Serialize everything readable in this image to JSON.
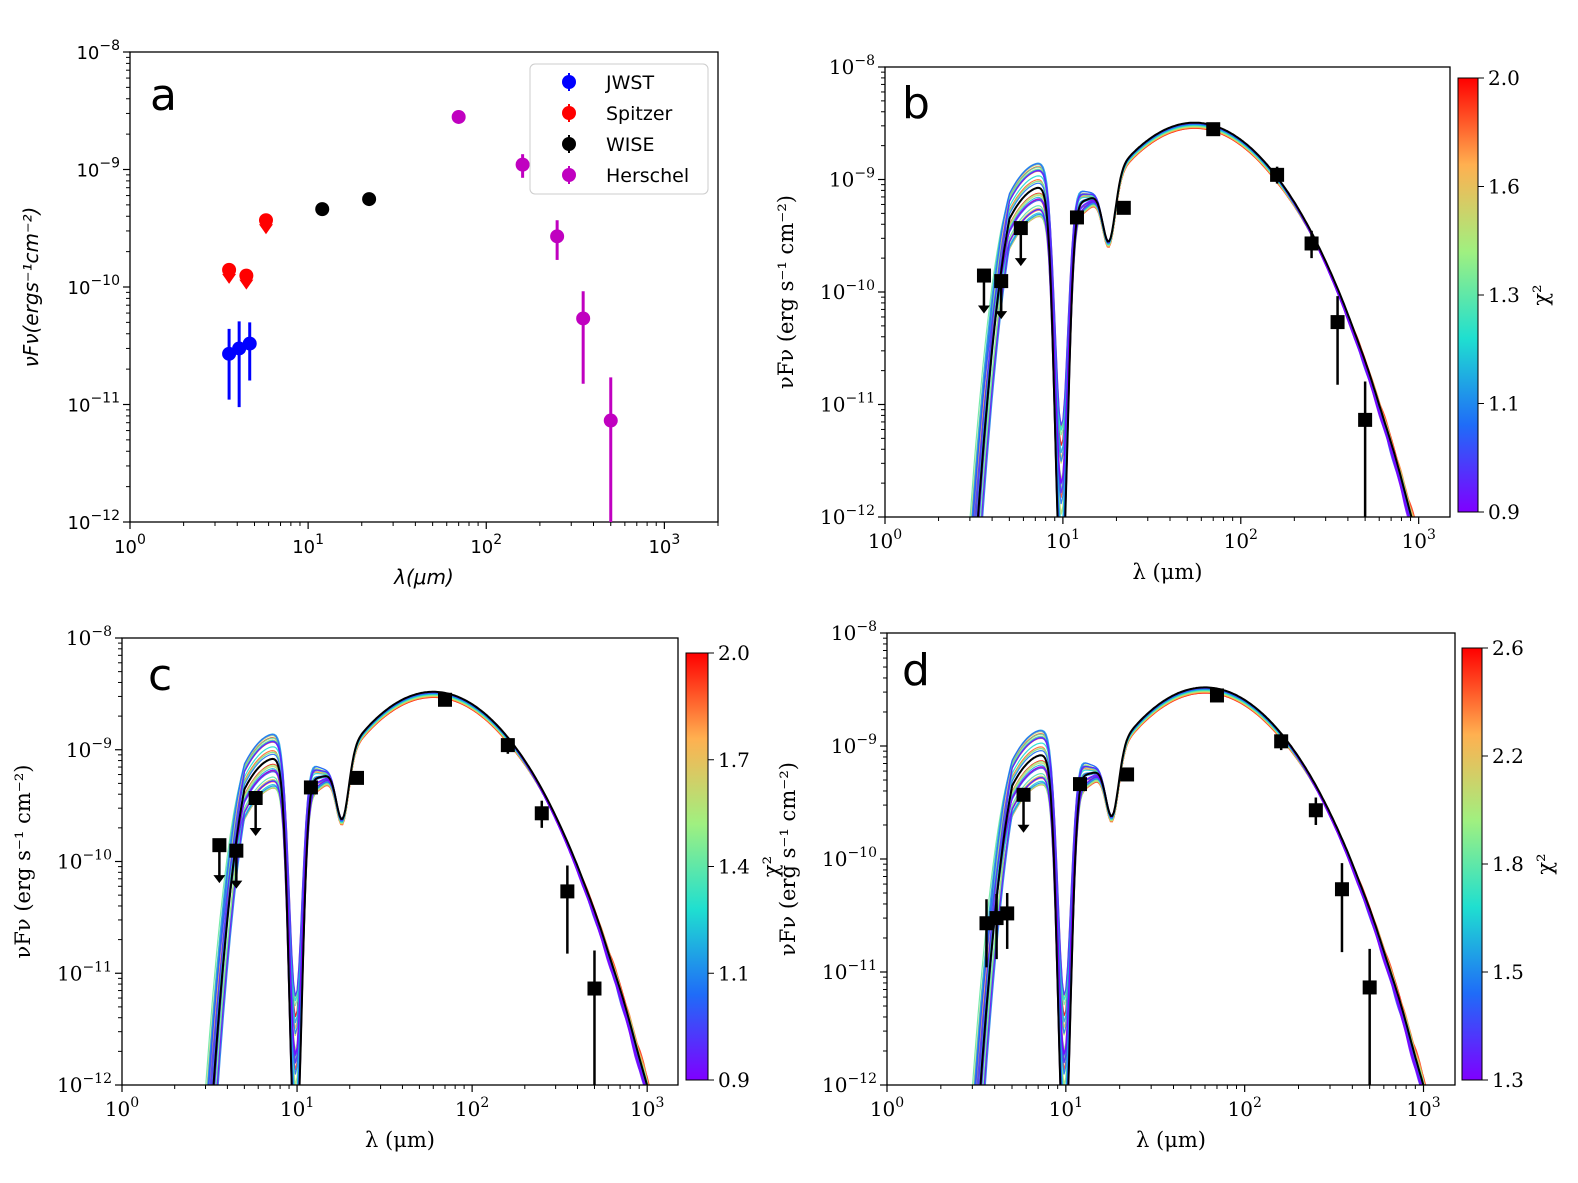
{
  "chart_data": [
    {
      "panel": "a",
      "type": "scatter",
      "scale": {
        "x": "log",
        "y": "log"
      },
      "xlim": [
        1,
        2000
      ],
      "ylim": [
        1e-12,
        1e-08
      ],
      "xticks": [
        "10^0",
        "10^1",
        "10^2",
        "10^3"
      ],
      "yticks": [
        "10^-12",
        "10^-11",
        "10^-10",
        "10^-9",
        "10^-8"
      ],
      "xlabel": "λ(μm)",
      "ylabel": "νFν(ergs⁻¹cm⁻²)",
      "legend": [
        "JWST",
        "Spitzer",
        "WISE",
        "Herschel"
      ],
      "legend_position": "top-right",
      "series": [
        {
          "name": "JWST",
          "color": "#0000ff",
          "points": [
            {
              "x": 3.6,
              "y": 2.7e-11,
              "ylo": 1.1e-11,
              "yhi": 4.4e-11
            },
            {
              "x": 4.1,
              "y": 3e-11,
              "ylo": 9.5e-12,
              "yhi": 5.1e-11
            },
            {
              "x": 4.7,
              "y": 3.3e-11,
              "ylo": 1.6e-11,
              "yhi": 5e-11
            }
          ]
        },
        {
          "name": "Spitzer",
          "color": "#ff0000",
          "upper_limit": true,
          "points": [
            {
              "x": 3.6,
              "y": 1.4e-10
            },
            {
              "x": 4.5,
              "y": 1.25e-10
            },
            {
              "x": 5.8,
              "y": 3.7e-10
            }
          ]
        },
        {
          "name": "WISE",
          "color": "#000000",
          "points": [
            {
              "x": 12,
              "y": 4.6e-10,
              "ylo": 4.1e-10,
              "yhi": 5.1e-10
            },
            {
              "x": 22,
              "y": 5.6e-10,
              "ylo": 5e-10,
              "yhi": 6.2e-10
            }
          ]
        },
        {
          "name": "Herschel",
          "color": "#c000c0",
          "points": [
            {
              "x": 70,
              "y": 2.8e-09,
              "ylo": 2.65e-09,
              "yhi": 2.95e-09
            },
            {
              "x": 160,
              "y": 1.1e-09,
              "ylo": 8.5e-10,
              "yhi": 1.35e-09
            },
            {
              "x": 250,
              "y": 2.7e-10,
              "ylo": 1.7e-10,
              "yhi": 3.7e-10
            },
            {
              "x": 350,
              "y": 5.4e-11,
              "ylo": 1.5e-11,
              "yhi": 9.2e-11
            },
            {
              "x": 500,
              "y": 7.3e-12,
              "ylo": 1e-12,
              "yhi": 1.7e-11
            }
          ]
        }
      ]
    },
    {
      "panel": "b",
      "type": "line",
      "scale": {
        "x": "log",
        "y": "log"
      },
      "xlim": [
        1,
        1500
      ],
      "ylim": [
        1e-12,
        1e-08
      ],
      "xticks": [
        "10^0",
        "10^1",
        "10^2",
        "10^3"
      ],
      "yticks": [
        "10^-12",
        "10^-11",
        "10^-10",
        "10^-9",
        "10^-8"
      ],
      "xlabel": "λ (μm)",
      "ylabel": "νFν (erg s⁻¹ cm⁻²)",
      "colorbar": {
        "label": "χ²",
        "min": 0.9,
        "max": 2.0,
        "ticks": [
          "2.0",
          "1.6",
          "1.3",
          "1.1",
          "0.9"
        ]
      },
      "points": [
        {
          "x": 3.6,
          "y": 1.4e-10,
          "limit": true
        },
        {
          "x": 4.5,
          "y": 1.25e-10,
          "limit": true
        },
        {
          "x": 5.8,
          "y": 3.7e-10,
          "limit": true
        },
        {
          "x": 12,
          "y": 4.6e-10,
          "ylo": 4.1e-10,
          "yhi": 5.1e-10
        },
        {
          "x": 22,
          "y": 5.6e-10,
          "ylo": 5e-10,
          "yhi": 6.2e-10
        },
        {
          "x": 70,
          "y": 2.8e-09,
          "ylo": 2.65e-09,
          "yhi": 2.95e-09
        },
        {
          "x": 160,
          "y": 1.1e-09,
          "ylo": 9.2e-10,
          "yhi": 1.3e-09
        },
        {
          "x": 250,
          "y": 2.7e-10,
          "ylo": 2e-10,
          "yhi": 3.5e-10
        },
        {
          "x": 350,
          "y": 5.4e-11,
          "ylo": 1.5e-11,
          "yhi": 9.2e-11
        },
        {
          "x": 500,
          "y": 7.3e-12,
          "ylo": 1e-12,
          "yhi": 1.6e-11
        }
      ],
      "model": {
        "peak_x": 55,
        "peak_y": 3.2e-09,
        "sil_x": 9.8
      }
    },
    {
      "panel": "c",
      "type": "line",
      "scale": {
        "x": "log",
        "y": "log"
      },
      "xlim": [
        1,
        1500
      ],
      "ylim": [
        1e-12,
        1e-08
      ],
      "xticks": [
        "10^0",
        "10^1",
        "10^2",
        "10^3"
      ],
      "yticks": [
        "10^-12",
        "10^-11",
        "10^-10",
        "10^-9",
        "10^-8"
      ],
      "xlabel": "λ (μm)",
      "ylabel": "νFν (erg s⁻¹ cm⁻²)",
      "colorbar": {
        "label": "χ²",
        "min": 0.9,
        "max": 2.0,
        "ticks": [
          "2.0",
          "1.7",
          "1.4",
          "1.1",
          "0.9"
        ]
      },
      "points": [
        {
          "x": 3.6,
          "y": 1.4e-10,
          "limit": true
        },
        {
          "x": 4.5,
          "y": 1.25e-10,
          "limit": true
        },
        {
          "x": 5.8,
          "y": 3.7e-10,
          "limit": true
        },
        {
          "x": 12,
          "y": 4.6e-10,
          "ylo": 4.1e-10,
          "yhi": 5.1e-10
        },
        {
          "x": 22,
          "y": 5.6e-10,
          "ylo": 5e-10,
          "yhi": 6.2e-10
        },
        {
          "x": 70,
          "y": 2.8e-09,
          "ylo": 2.65e-09,
          "yhi": 2.95e-09
        },
        {
          "x": 160,
          "y": 1.1e-09,
          "ylo": 9.2e-10,
          "yhi": 1.3e-09
        },
        {
          "x": 250,
          "y": 2.7e-10,
          "ylo": 2e-10,
          "yhi": 3.5e-10
        },
        {
          "x": 350,
          "y": 5.4e-11,
          "ylo": 1.5e-11,
          "yhi": 9.2e-11
        },
        {
          "x": 500,
          "y": 7.3e-12,
          "ylo": 1e-12,
          "yhi": 1.6e-11
        }
      ],
      "model": {
        "peak_x": 60,
        "peak_y": 3.3e-09,
        "sil_x": 9.8
      }
    },
    {
      "panel": "d",
      "type": "line",
      "scale": {
        "x": "log",
        "y": "log"
      },
      "xlim": [
        1,
        1500
      ],
      "ylim": [
        1e-12,
        1e-08
      ],
      "xticks": [
        "10^0",
        "10^1",
        "10^2",
        "10^3"
      ],
      "yticks": [
        "10^-12",
        "10^-11",
        "10^-10",
        "10^-9",
        "10^-8"
      ],
      "xlabel": "λ (μm)",
      "ylabel": "νFν (erg s⁻¹ cm⁻²)",
      "colorbar": {
        "label": "χ²",
        "min": 1.3,
        "max": 2.6,
        "ticks": [
          "2.6",
          "2.2",
          "1.8",
          "1.5",
          "1.3"
        ]
      },
      "points": [
        {
          "x": 3.6,
          "y": 2.7e-11,
          "ylo": 1.1e-11,
          "yhi": 4.4e-11
        },
        {
          "x": 4.1,
          "y": 3e-11,
          "ylo": 1.3e-11,
          "yhi": 4.9e-11
        },
        {
          "x": 4.7,
          "y": 3.3e-11,
          "ylo": 1.6e-11,
          "yhi": 5e-11
        },
        {
          "x": 5.8,
          "y": 3.7e-10,
          "limit": true
        },
        {
          "x": 12,
          "y": 4.6e-10,
          "ylo": 4.1e-10,
          "yhi": 5.1e-10
        },
        {
          "x": 22,
          "y": 5.6e-10,
          "ylo": 5e-10,
          "yhi": 6.2e-10
        },
        {
          "x": 70,
          "y": 2.8e-09,
          "ylo": 2.65e-09,
          "yhi": 2.95e-09
        },
        {
          "x": 160,
          "y": 1.1e-09,
          "ylo": 9.2e-10,
          "yhi": 1.3e-09
        },
        {
          "x": 250,
          "y": 2.7e-10,
          "ylo": 2e-10,
          "yhi": 3.5e-10
        },
        {
          "x": 350,
          "y": 5.4e-11,
          "ylo": 1.5e-11,
          "yhi": 9.2e-11
        },
        {
          "x": 500,
          "y": 7.3e-12,
          "ylo": 1e-12,
          "yhi": 1.6e-11
        }
      ],
      "model": {
        "peak_x": 60,
        "peak_y": 3.3e-09,
        "sil_x": 9.8
      }
    }
  ]
}
